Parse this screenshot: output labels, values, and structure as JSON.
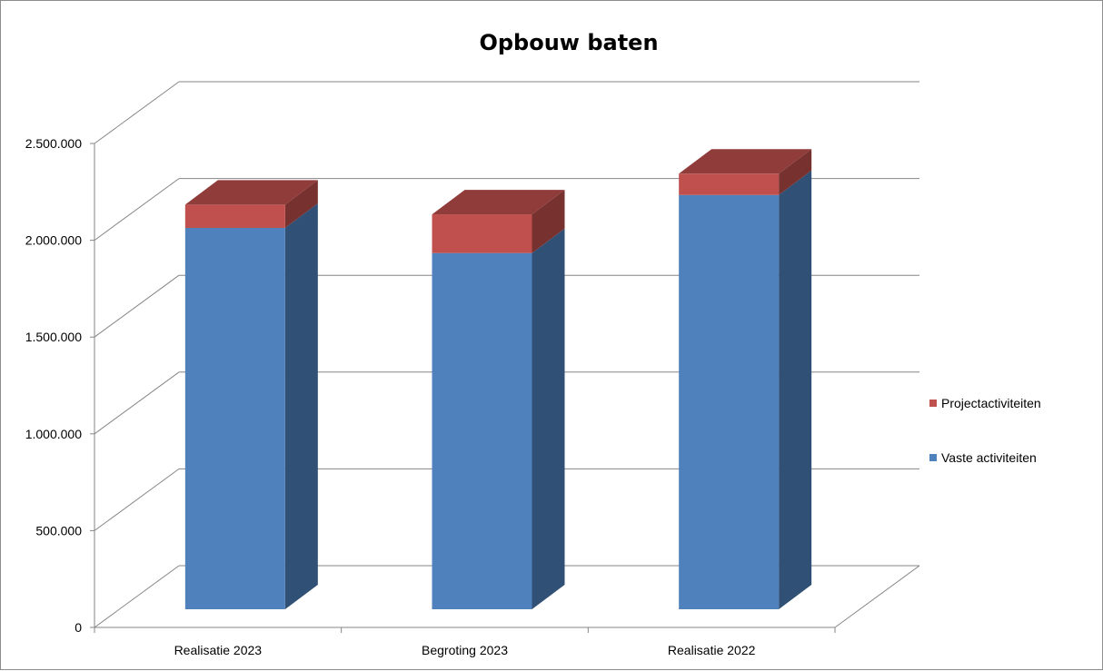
{
  "chart_data": {
    "type": "bar",
    "stacked": true,
    "three_d": true,
    "title": "Opbouw baten",
    "categories": [
      "Realisatie 2023",
      "Begroting 2023",
      "Realisatie 2022"
    ],
    "series": [
      {
        "name": "Vaste activiteiten",
        "color": "#4f81bd",
        "values": [
          1970000,
          1840000,
          2140000
        ]
      },
      {
        "name": "Projectactiviteiten",
        "color": "#c0504d",
        "values": [
          120000,
          200000,
          110000
        ]
      }
    ],
    "ylim": [
      0,
      2500000
    ],
    "yticks": [
      {
        "value": 0,
        "label": "0"
      },
      {
        "value": 500000,
        "label": "500.000"
      },
      {
        "value": 1000000,
        "label": "1.000.000"
      },
      {
        "value": 1500000,
        "label": "1.500.000"
      },
      {
        "value": 2000000,
        "label": "2.000.000"
      },
      {
        "value": 2500000,
        "label": "2.500.000"
      }
    ],
    "grid": true,
    "legend_position": "right",
    "legend_order": [
      "Projectactiviteiten",
      "Vaste activiteiten"
    ]
  }
}
